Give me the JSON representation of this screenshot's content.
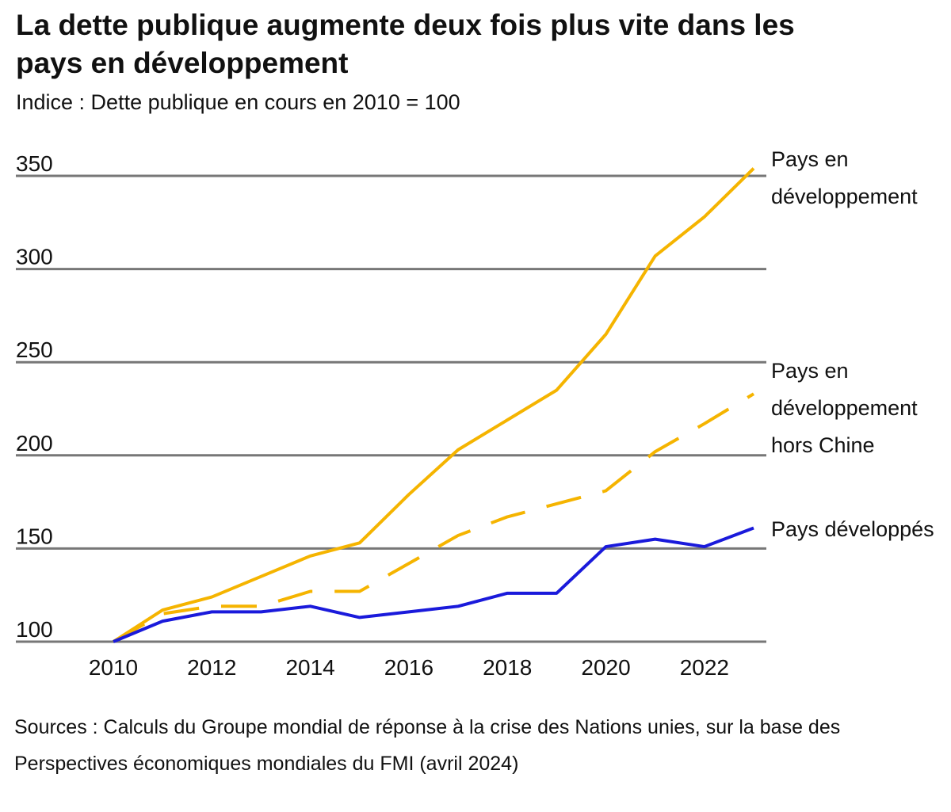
{
  "chart_data": {
    "type": "line",
    "title": "La dette publique augmente deux fois plus vite dans les pays en développement",
    "subtitle": "Indice : Dette publique en cours en 2010 = 100",
    "source": "Sources : Calculs du Groupe mondial de réponse à la crise des Nations unies, sur la base des Perspectives économiques mondiales du FMI (avril 2024)",
    "x": [
      2010,
      2011,
      2012,
      2013,
      2014,
      2015,
      2016,
      2017,
      2018,
      2019,
      2020,
      2021,
      2022,
      2023
    ],
    "xlim": [
      2010,
      2023
    ],
    "xticks": [
      2010,
      2012,
      2014,
      2016,
      2018,
      2020,
      2022
    ],
    "ylim": [
      100,
      350
    ],
    "yticks": [
      100,
      150,
      200,
      250,
      300,
      350
    ],
    "grid": true,
    "series": [
      {
        "name": "Pays en développement",
        "color": "#f5b400",
        "dashed": false,
        "values": [
          100,
          117,
          124,
          135,
          146,
          153,
          179,
          203,
          219,
          235,
          265,
          307,
          328,
          354
        ]
      },
      {
        "name": "Pays en développement hors Chine",
        "color": "#f5b400",
        "dashed": true,
        "values": [
          100,
          115,
          119,
          119,
          127,
          127,
          142,
          157,
          167,
          174,
          181,
          202,
          217,
          233
        ]
      },
      {
        "name": "Pays développés",
        "color": "#1a1adb",
        "dashed": false,
        "values": [
          100,
          111,
          116,
          116,
          119,
          113,
          116,
          119,
          126,
          126,
          151,
          155,
          151,
          161
        ]
      }
    ]
  }
}
